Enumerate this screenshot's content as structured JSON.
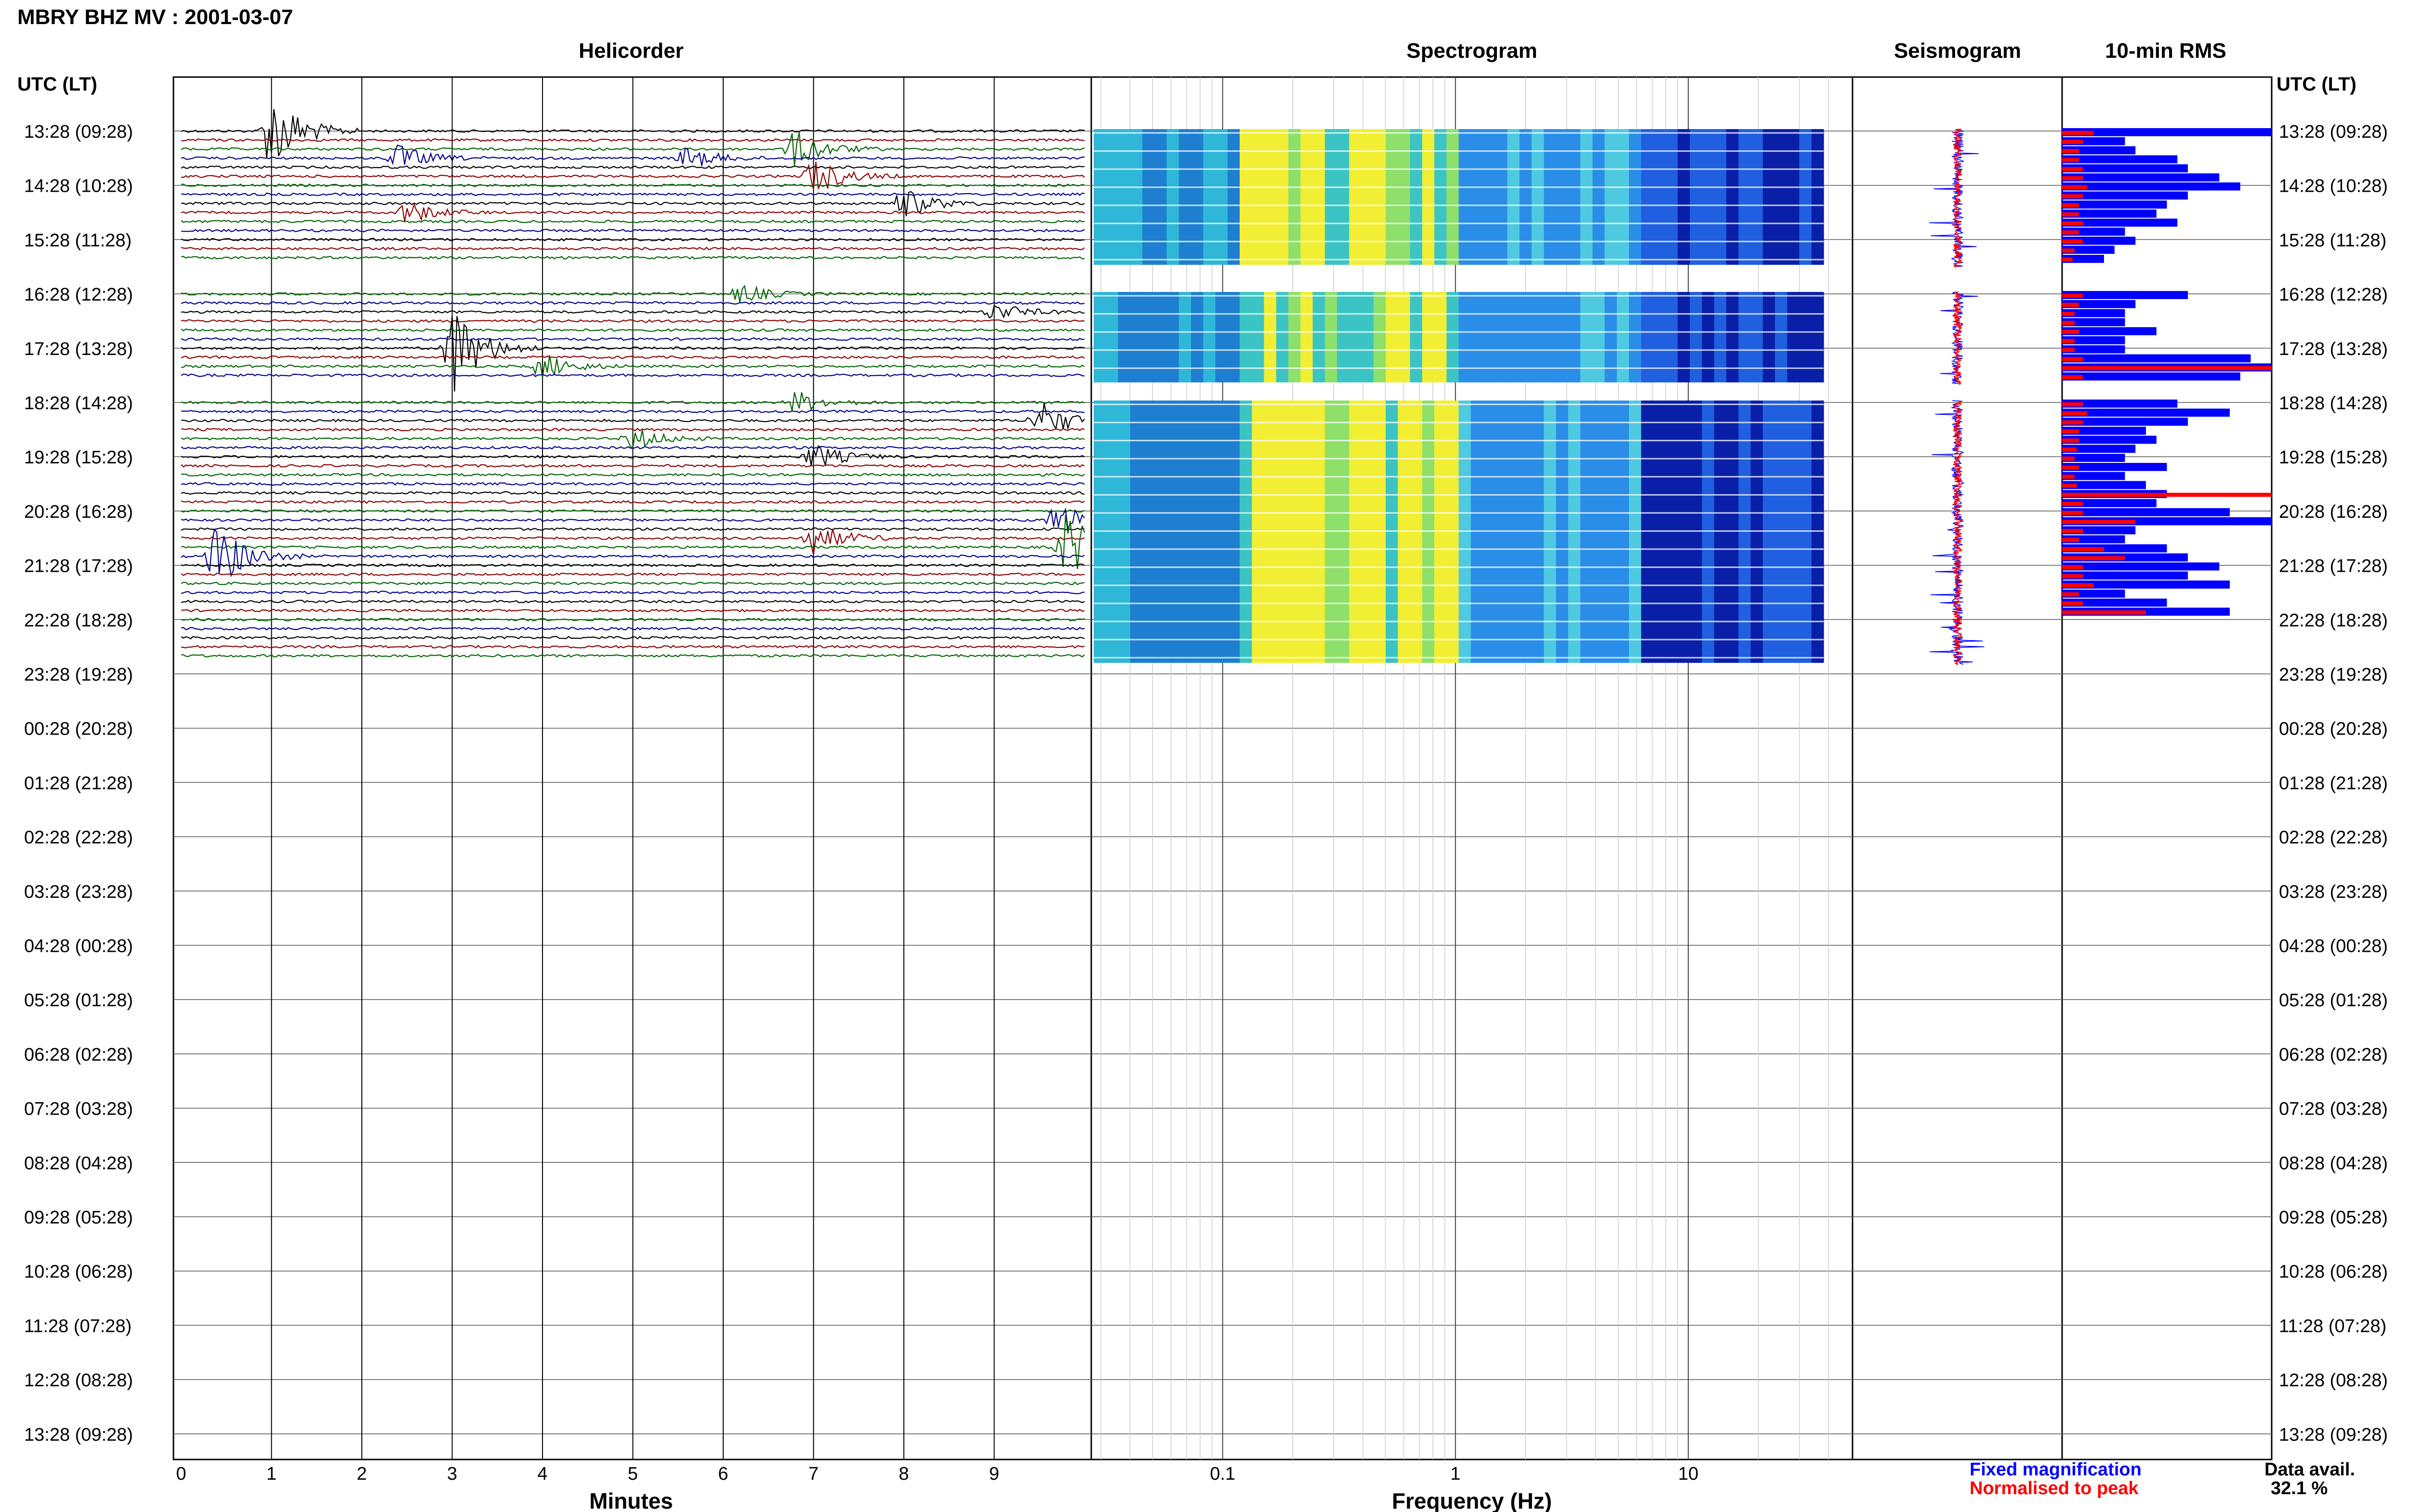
{
  "header": {
    "title": "MBRY BHZ MV : 2001-03-07"
  },
  "panels": {
    "helicorder": "Helicorder",
    "spectrogram": "Spectrogram",
    "seismogram": "Seismogram",
    "rms": "10-min RMS"
  },
  "axis": {
    "time_header_left": "UTC (LT)",
    "time_header_right": "UTC (LT)",
    "minutes_label": "Minutes",
    "frequency_label": "Frequency (Hz)",
    "minutes_ticks": [
      "0",
      "1",
      "2",
      "3",
      "4",
      "5",
      "6",
      "7",
      "8",
      "9"
    ],
    "frequency_ticks": [
      "0.1",
      "1",
      "10"
    ],
    "time_ticks": [
      "13:28 (09:28)",
      "14:28 (10:28)",
      "15:28 (11:28)",
      "16:28 (12:28)",
      "17:28 (13:28)",
      "18:28 (14:28)",
      "19:28 (15:28)",
      "20:28 (16:28)",
      "21:28 (17:28)",
      "22:28 (18:28)",
      "23:28 (19:28)",
      "00:28 (20:28)",
      "01:28 (21:28)",
      "02:28 (22:28)",
      "03:28 (23:28)",
      "04:28 (00:28)",
      "05:28 (01:28)",
      "06:28 (02:28)",
      "07:28 (03:28)",
      "08:28 (04:28)",
      "09:28 (05:28)",
      "10:28 (06:28)",
      "11:28 (07:28)",
      "12:28 (08:28)",
      "13:28 (09:28)"
    ]
  },
  "legend": {
    "fixed": "Fixed magnification",
    "fixed_color": "#0000ff",
    "normalised": "Normalised to peak",
    "normalised_color": "#ff0000"
  },
  "availability": {
    "label": "Data avail.",
    "value": "32.1 %"
  },
  "colors": {
    "trace_cycle": [
      "#000000",
      "#8b0000",
      "#006400",
      "#00008b"
    ],
    "rms_fixed": "#0000ff",
    "rms_normalised": "#ff0000"
  },
  "chart_data": {
    "type": "helicorder",
    "time_rows_hours": 24,
    "row_minutes": 10,
    "data_segments_rows": [
      [
        0,
        15
      ],
      [
        18,
        28
      ],
      [
        30,
        59
      ]
    ],
    "events": [
      {
        "row": 0,
        "minute": 1.0,
        "amplitude": 2.2
      },
      {
        "row": 2,
        "minute": 6.8,
        "amplitude": 1.0
      },
      {
        "row": 3,
        "minute": 2.4,
        "amplitude": 0.7
      },
      {
        "row": 3,
        "minute": 5.6,
        "amplitude": 0.6
      },
      {
        "row": 5,
        "minute": 7.0,
        "amplitude": 1.0
      },
      {
        "row": 8,
        "minute": 8.0,
        "amplitude": 0.8
      },
      {
        "row": 9,
        "minute": 2.5,
        "amplitude": 0.6
      },
      {
        "row": 18,
        "minute": 6.2,
        "amplitude": 0.5
      },
      {
        "row": 20,
        "minute": 9.0,
        "amplitude": 0.5
      },
      {
        "row": 24,
        "minute": 3.0,
        "amplitude": 2.5
      },
      {
        "row": 26,
        "minute": 4.0,
        "amplitude": 0.7
      },
      {
        "row": 30,
        "minute": 6.8,
        "amplitude": 0.6
      },
      {
        "row": 32,
        "minute": 9.5,
        "amplitude": 1.1
      },
      {
        "row": 34,
        "minute": 5.0,
        "amplitude": 0.6
      },
      {
        "row": 36,
        "minute": 7.0,
        "amplitude": 0.7
      },
      {
        "row": 43,
        "minute": 9.7,
        "amplitude": 0.9
      },
      {
        "row": 45,
        "minute": 7.0,
        "amplitude": 0.9
      },
      {
        "row": 46,
        "minute": 9.8,
        "amplitude": 2.0
      },
      {
        "row": 47,
        "minute": 0.4,
        "amplitude": 1.8
      }
    ],
    "rms_fixed": [
      1.0,
      0.3,
      0.35,
      0.55,
      0.6,
      0.75,
      0.85,
      0.6,
      0.5,
      0.45,
      0.55,
      0.3,
      0.35,
      0.25,
      0.2,
      0,
      0,
      0,
      0.6,
      0.35,
      0.3,
      0.3,
      0.45,
      0.3,
      0.3,
      0.9,
      1.0,
      0.85,
      0,
      0,
      0.55,
      0.8,
      0.6,
      0.4,
      0.45,
      0.35,
      0.3,
      0.5,
      0.3,
      0.4,
      0.5,
      0.45,
      0.8,
      1.0,
      0.35,
      0.3,
      0.5,
      0.6,
      0.75,
      0.6,
      0.8,
      0.3,
      0.5,
      0.8
    ],
    "rms_normalised": [
      0.15,
      0.1,
      0.08,
      0.08,
      0.1,
      0.1,
      0.12,
      0.1,
      0.08,
      0.08,
      0.1,
      0.08,
      0.1,
      0.06,
      0.05,
      0,
      0,
      0,
      0.1,
      0.08,
      0.06,
      0.06,
      0.08,
      0.06,
      0.06,
      0.1,
      1.0,
      0.1,
      0,
      0,
      0.1,
      0.12,
      0.1,
      0.08,
      0.08,
      0.07,
      0.06,
      0.08,
      0.06,
      0.07,
      1.0,
      0.1,
      0.1,
      0.35,
      0.1,
      0.08,
      0.2,
      0.3,
      0.1,
      0.1,
      0.15,
      0.08,
      0.1,
      0.4
    ],
    "x_minutes_range": [
      0,
      10
    ],
    "frequency_range_hz": [
      0.03,
      40
    ],
    "frequency_scale": "log"
  }
}
